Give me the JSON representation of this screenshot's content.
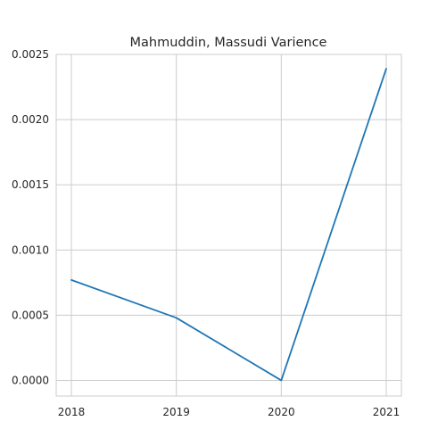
{
  "chart_data": {
    "type": "line",
    "title": "Mahmuddin, Massudi Varience",
    "xlabel": "",
    "ylabel": "",
    "x": [
      "2018",
      "2019",
      "2020",
      "2021"
    ],
    "series": [
      {
        "values": [
          0.00077,
          0.00048,
          0.0,
          0.00239
        ],
        "color": "#1f77b4"
      }
    ],
    "yticks": [
      "0.0000",
      "0.0005",
      "0.0010",
      "0.0015",
      "0.0020",
      "0.0025"
    ],
    "ytick_values": [
      0,
      0.0005,
      0.001,
      0.0015,
      0.002,
      0.0025
    ],
    "ylim": [
      -0.00012,
      0.0025
    ],
    "grid": true,
    "legend": "none"
  }
}
